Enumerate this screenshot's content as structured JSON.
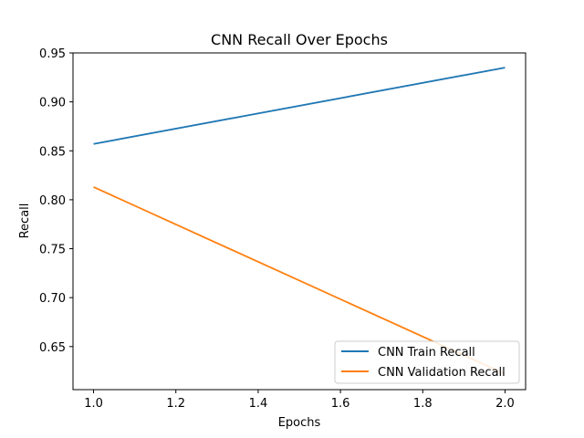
{
  "chart_data": {
    "type": "line",
    "title": "CNN Recall Over Epochs",
    "xlabel": "Epochs",
    "ylabel": "Recall",
    "xlim": [
      0.95,
      2.05
    ],
    "ylim": [
      0.606,
      0.95
    ],
    "x_ticks": [
      1.0,
      1.2,
      1.4,
      1.6,
      1.8,
      2.0
    ],
    "x_tick_labels": [
      "1.0",
      "1.2",
      "1.4",
      "1.6",
      "1.8",
      "2.0"
    ],
    "y_ticks": [
      0.65,
      0.7,
      0.75,
      0.8,
      0.85,
      0.9,
      0.95
    ],
    "y_tick_labels": [
      "0.65",
      "0.70",
      "0.75",
      "0.80",
      "0.85",
      "0.90",
      "0.95"
    ],
    "grid": false,
    "legend_position": "lower-right",
    "series": [
      {
        "name": "CNN Train Recall",
        "color": "#1f77b4",
        "x": [
          1.0,
          2.0
        ],
        "y": [
          0.857,
          0.935
        ]
      },
      {
        "name": "CNN Validation Recall",
        "color": "#ff7f0e",
        "x": [
          1.0,
          2.0
        ],
        "y": [
          0.813,
          0.622
        ]
      }
    ]
  }
}
